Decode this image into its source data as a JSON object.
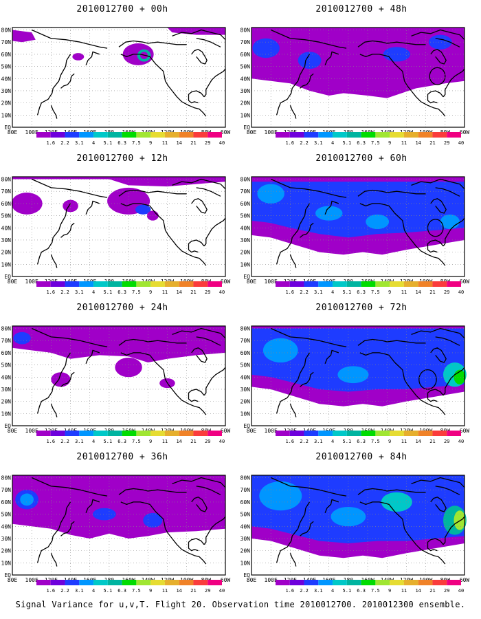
{
  "figure": {
    "caption": "Signal Variance for u,v,T. Flight 20. Observation time 2010012700. 2010012300 ensemble."
  },
  "axes": {
    "lat_labels": [
      "80N",
      "70N",
      "60N",
      "50N",
      "40N",
      "30N",
      "20N",
      "10N",
      "EQ"
    ],
    "lon_labels": [
      "80E",
      "100E",
      "120E",
      "140E",
      "160E",
      "180",
      "160W",
      "140W",
      "120W",
      "100W",
      "80W",
      "60W"
    ]
  },
  "colorbar": {
    "levels": [
      "1.6",
      "2.2",
      "3.1",
      "4",
      "5.1",
      "6.3",
      "7.5",
      "9",
      "11",
      "14",
      "21",
      "29",
      "40"
    ],
    "colors": [
      "#a000c8",
      "#6e00dc",
      "#1e3cff",
      "#0096ff",
      "#00c8c8",
      "#00b4a0",
      "#00dc00",
      "#a0e632",
      "#e6dc32",
      "#e6af2d",
      "#f08228",
      "#fa3c3c",
      "#f00082"
    ]
  },
  "panels": [
    {
      "title": "2010012700 + 00h",
      "lead": "00h",
      "coverage": "minimal"
    },
    {
      "title": "2010012700 + 48h",
      "lead": "48h",
      "coverage": "moderate"
    },
    {
      "title": "2010012700 + 12h",
      "lead": "12h",
      "coverage": "low"
    },
    {
      "title": "2010012700 + 60h",
      "lead": "60h",
      "coverage": "moderate"
    },
    {
      "title": "2010012700 + 24h",
      "lead": "24h",
      "coverage": "low"
    },
    {
      "title": "2010012700 + 72h",
      "lead": "72h",
      "coverage": "high"
    },
    {
      "title": "2010012700 + 36h",
      "lead": "36h",
      "coverage": "moderate"
    },
    {
      "title": "2010012700 + 84h",
      "lead": "84h",
      "coverage": "high"
    }
  ]
}
